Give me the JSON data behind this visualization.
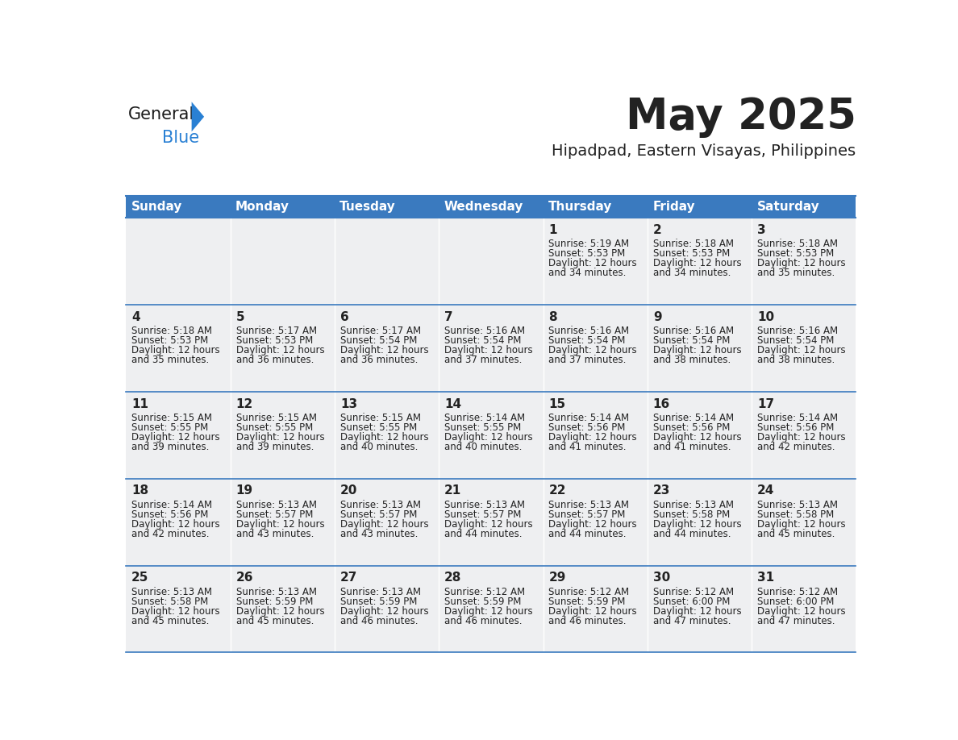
{
  "title": "May 2025",
  "subtitle": "Hipadpad, Eastern Visayas, Philippines",
  "header_color": "#3a7abf",
  "header_text_color": "#ffffff",
  "cell_bg_color": "#eeeff1",
  "text_color": "#222222",
  "day_headers": [
    "Sunday",
    "Monday",
    "Tuesday",
    "Wednesday",
    "Thursday",
    "Friday",
    "Saturday"
  ],
  "days": [
    {
      "day": 1,
      "col": 4,
      "row": 0,
      "sunrise": "5:19 AM",
      "sunset": "5:53 PM",
      "daylight_hours": 12,
      "daylight_minutes": 34
    },
    {
      "day": 2,
      "col": 5,
      "row": 0,
      "sunrise": "5:18 AM",
      "sunset": "5:53 PM",
      "daylight_hours": 12,
      "daylight_minutes": 34
    },
    {
      "day": 3,
      "col": 6,
      "row": 0,
      "sunrise": "5:18 AM",
      "sunset": "5:53 PM",
      "daylight_hours": 12,
      "daylight_minutes": 35
    },
    {
      "day": 4,
      "col": 0,
      "row": 1,
      "sunrise": "5:18 AM",
      "sunset": "5:53 PM",
      "daylight_hours": 12,
      "daylight_minutes": 35
    },
    {
      "day": 5,
      "col": 1,
      "row": 1,
      "sunrise": "5:17 AM",
      "sunset": "5:53 PM",
      "daylight_hours": 12,
      "daylight_minutes": 36
    },
    {
      "day": 6,
      "col": 2,
      "row": 1,
      "sunrise": "5:17 AM",
      "sunset": "5:54 PM",
      "daylight_hours": 12,
      "daylight_minutes": 36
    },
    {
      "day": 7,
      "col": 3,
      "row": 1,
      "sunrise": "5:16 AM",
      "sunset": "5:54 PM",
      "daylight_hours": 12,
      "daylight_minutes": 37
    },
    {
      "day": 8,
      "col": 4,
      "row": 1,
      "sunrise": "5:16 AM",
      "sunset": "5:54 PM",
      "daylight_hours": 12,
      "daylight_minutes": 37
    },
    {
      "day": 9,
      "col": 5,
      "row": 1,
      "sunrise": "5:16 AM",
      "sunset": "5:54 PM",
      "daylight_hours": 12,
      "daylight_minutes": 38
    },
    {
      "day": 10,
      "col": 6,
      "row": 1,
      "sunrise": "5:16 AM",
      "sunset": "5:54 PM",
      "daylight_hours": 12,
      "daylight_minutes": 38
    },
    {
      "day": 11,
      "col": 0,
      "row": 2,
      "sunrise": "5:15 AM",
      "sunset": "5:55 PM",
      "daylight_hours": 12,
      "daylight_minutes": 39
    },
    {
      "day": 12,
      "col": 1,
      "row": 2,
      "sunrise": "5:15 AM",
      "sunset": "5:55 PM",
      "daylight_hours": 12,
      "daylight_minutes": 39
    },
    {
      "day": 13,
      "col": 2,
      "row": 2,
      "sunrise": "5:15 AM",
      "sunset": "5:55 PM",
      "daylight_hours": 12,
      "daylight_minutes": 40
    },
    {
      "day": 14,
      "col": 3,
      "row": 2,
      "sunrise": "5:14 AM",
      "sunset": "5:55 PM",
      "daylight_hours": 12,
      "daylight_minutes": 40
    },
    {
      "day": 15,
      "col": 4,
      "row": 2,
      "sunrise": "5:14 AM",
      "sunset": "5:56 PM",
      "daylight_hours": 12,
      "daylight_minutes": 41
    },
    {
      "day": 16,
      "col": 5,
      "row": 2,
      "sunrise": "5:14 AM",
      "sunset": "5:56 PM",
      "daylight_hours": 12,
      "daylight_minutes": 41
    },
    {
      "day": 17,
      "col": 6,
      "row": 2,
      "sunrise": "5:14 AM",
      "sunset": "5:56 PM",
      "daylight_hours": 12,
      "daylight_minutes": 42
    },
    {
      "day": 18,
      "col": 0,
      "row": 3,
      "sunrise": "5:14 AM",
      "sunset": "5:56 PM",
      "daylight_hours": 12,
      "daylight_minutes": 42
    },
    {
      "day": 19,
      "col": 1,
      "row": 3,
      "sunrise": "5:13 AM",
      "sunset": "5:57 PM",
      "daylight_hours": 12,
      "daylight_minutes": 43
    },
    {
      "day": 20,
      "col": 2,
      "row": 3,
      "sunrise": "5:13 AM",
      "sunset": "5:57 PM",
      "daylight_hours": 12,
      "daylight_minutes": 43
    },
    {
      "day": 21,
      "col": 3,
      "row": 3,
      "sunrise": "5:13 AM",
      "sunset": "5:57 PM",
      "daylight_hours": 12,
      "daylight_minutes": 44
    },
    {
      "day": 22,
      "col": 4,
      "row": 3,
      "sunrise": "5:13 AM",
      "sunset": "5:57 PM",
      "daylight_hours": 12,
      "daylight_minutes": 44
    },
    {
      "day": 23,
      "col": 5,
      "row": 3,
      "sunrise": "5:13 AM",
      "sunset": "5:58 PM",
      "daylight_hours": 12,
      "daylight_minutes": 44
    },
    {
      "day": 24,
      "col": 6,
      "row": 3,
      "sunrise": "5:13 AM",
      "sunset": "5:58 PM",
      "daylight_hours": 12,
      "daylight_minutes": 45
    },
    {
      "day": 25,
      "col": 0,
      "row": 4,
      "sunrise": "5:13 AM",
      "sunset": "5:58 PM",
      "daylight_hours": 12,
      "daylight_minutes": 45
    },
    {
      "day": 26,
      "col": 1,
      "row": 4,
      "sunrise": "5:13 AM",
      "sunset": "5:59 PM",
      "daylight_hours": 12,
      "daylight_minutes": 45
    },
    {
      "day": 27,
      "col": 2,
      "row": 4,
      "sunrise": "5:13 AM",
      "sunset": "5:59 PM",
      "daylight_hours": 12,
      "daylight_minutes": 46
    },
    {
      "day": 28,
      "col": 3,
      "row": 4,
      "sunrise": "5:12 AM",
      "sunset": "5:59 PM",
      "daylight_hours": 12,
      "daylight_minutes": 46
    },
    {
      "day": 29,
      "col": 4,
      "row": 4,
      "sunrise": "5:12 AM",
      "sunset": "5:59 PM",
      "daylight_hours": 12,
      "daylight_minutes": 46
    },
    {
      "day": 30,
      "col": 5,
      "row": 4,
      "sunrise": "5:12 AM",
      "sunset": "6:00 PM",
      "daylight_hours": 12,
      "daylight_minutes": 47
    },
    {
      "day": 31,
      "col": 6,
      "row": 4,
      "sunrise": "5:12 AM",
      "sunset": "6:00 PM",
      "daylight_hours": 12,
      "daylight_minutes": 47
    }
  ],
  "n_rows": 5,
  "n_cols": 7,
  "logo_text_general": "General",
  "logo_text_blue": "Blue",
  "logo_color_general": "#1a1a1a",
  "logo_color_blue": "#2980d4",
  "logo_triangle_color": "#2980d4",
  "title_fontsize": 38,
  "subtitle_fontsize": 14,
  "header_fontsize": 11,
  "day_num_fontsize": 11,
  "cell_text_fontsize": 8.5
}
